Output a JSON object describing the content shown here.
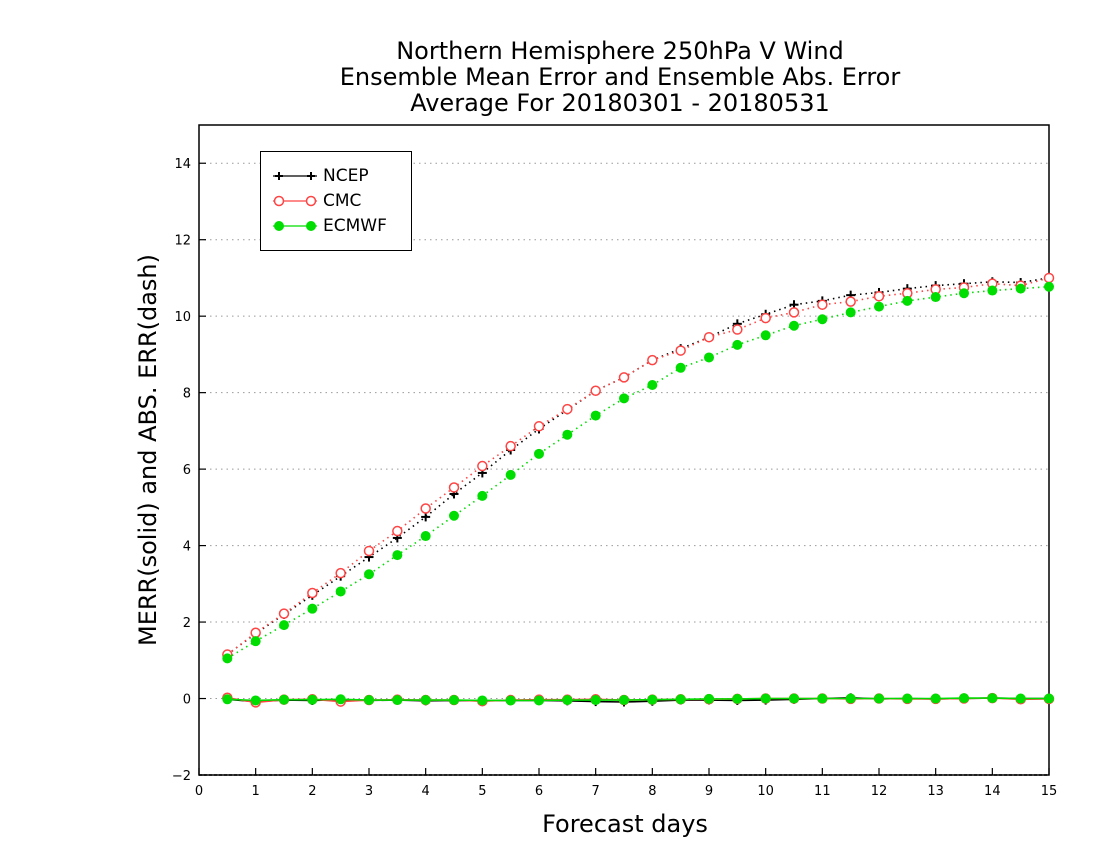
{
  "chart_data": {
    "type": "line",
    "title": [
      "Northern Hemisphere 250hPa V Wind",
      "Ensemble Mean Error and Ensemble Abs. Error",
      "Average For 20180301 - 20180531"
    ],
    "xlabel": "Forecast days",
    "ylabel": "MERR(solid) and ABS. ERR(dash)",
    "xlim": [
      0,
      15
    ],
    "ylim": [
      -2,
      15
    ],
    "xticks": [
      0,
      1,
      2,
      3,
      4,
      5,
      6,
      7,
      8,
      9,
      10,
      11,
      12,
      13,
      14,
      15
    ],
    "yticks": [
      -2,
      0,
      2,
      4,
      6,
      8,
      10,
      12,
      14
    ],
    "grid": "horizontal dotted",
    "legend_position": "top-left",
    "x": [
      0.5,
      1,
      1.5,
      2,
      2.5,
      3,
      3.5,
      4,
      4.5,
      5,
      5.5,
      6,
      6.5,
      7,
      7.5,
      8,
      8.5,
      9,
      9.5,
      10,
      10.5,
      11,
      11.5,
      12,
      12.5,
      13,
      13.5,
      14,
      14.5,
      15
    ],
    "series": [
      {
        "name": "NCEP",
        "color": "#000000",
        "marker": "plus",
        "style": "abs_error_dotted",
        "values": [
          1.15,
          1.7,
          2.2,
          2.7,
          3.2,
          3.7,
          4.2,
          4.75,
          5.35,
          5.9,
          6.5,
          7.05,
          7.55,
          8.05,
          8.4,
          8.85,
          9.15,
          9.45,
          9.8,
          10.05,
          10.3,
          10.4,
          10.55,
          10.62,
          10.72,
          10.8,
          10.85,
          10.9,
          10.88,
          11.0
        ]
      },
      {
        "name": "CMC",
        "color": "#ff4444",
        "marker": "open-circle",
        "style": "abs_error_dotted",
        "values": [
          1.15,
          1.72,
          2.22,
          2.76,
          3.28,
          3.86,
          4.38,
          4.97,
          5.52,
          6.08,
          6.6,
          7.12,
          7.57,
          8.05,
          8.4,
          8.85,
          9.1,
          9.45,
          9.65,
          9.95,
          10.1,
          10.3,
          10.38,
          10.52,
          10.6,
          10.7,
          10.75,
          10.85,
          10.8,
          11.0
        ]
      },
      {
        "name": "ECMWF",
        "color": "#00dd00",
        "marker": "filled-circle",
        "style": "abs_error_dotted",
        "values": [
          1.05,
          1.5,
          1.92,
          2.35,
          2.8,
          3.25,
          3.75,
          4.25,
          4.78,
          5.3,
          5.85,
          6.4,
          6.9,
          7.4,
          7.85,
          8.2,
          8.65,
          8.92,
          9.25,
          9.5,
          9.75,
          9.92,
          10.1,
          10.25,
          10.4,
          10.5,
          10.6,
          10.67,
          10.72,
          10.77
        ]
      }
    ],
    "mean_error_series": [
      {
        "name": "NCEP",
        "color": "#000000",
        "marker": "plus",
        "style": "mean_error_solid",
        "values": [
          -0.02,
          -0.08,
          -0.04,
          -0.05,
          -0.03,
          -0.05,
          -0.04,
          -0.06,
          -0.05,
          -0.06,
          -0.05,
          -0.05,
          -0.06,
          -0.08,
          -0.09,
          -0.07,
          -0.04,
          -0.04,
          -0.05,
          -0.04,
          -0.02,
          0.0,
          0.02,
          -0.01,
          0.0,
          -0.01,
          0.0,
          0.01,
          0.0,
          0.0
        ]
      },
      {
        "name": "CMC",
        "color": "#ff4444",
        "marker": "open-circle",
        "style": "mean_error_solid",
        "values": [
          0.02,
          -0.1,
          -0.03,
          -0.02,
          -0.08,
          -0.04,
          -0.03,
          -0.04,
          -0.04,
          -0.07,
          -0.04,
          -0.03,
          -0.03,
          -0.02,
          -0.04,
          -0.03,
          -0.02,
          -0.02,
          -0.01,
          0.0,
          0.0,
          0.0,
          -0.01,
          0.0,
          -0.01,
          -0.01,
          0.0,
          0.01,
          -0.02,
          -0.01
        ]
      },
      {
        "name": "ECMWF",
        "color": "#00dd00",
        "marker": "filled-circle",
        "style": "mean_error_solid",
        "values": [
          -0.02,
          -0.05,
          -0.03,
          -0.03,
          -0.02,
          -0.04,
          -0.04,
          -0.04,
          -0.04,
          -0.05,
          -0.05,
          -0.05,
          -0.04,
          -0.04,
          -0.04,
          -0.03,
          -0.02,
          -0.01,
          -0.01,
          0.0,
          0.0,
          0.0,
          0.0,
          0.0,
          0.0,
          0.0,
          0.01,
          0.01,
          0.0,
          0.0
        ]
      }
    ]
  }
}
